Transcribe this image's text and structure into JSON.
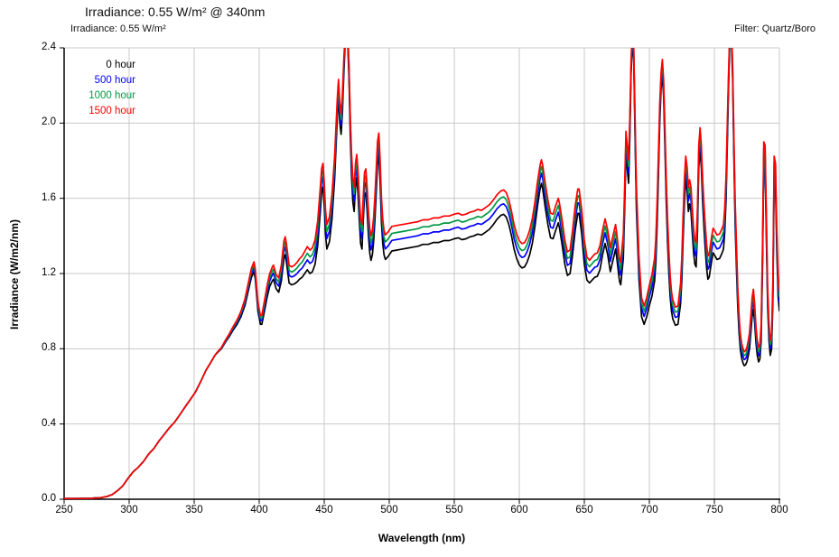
{
  "page": {
    "title": "Irradiance: 0.55 W/m² @ 340nm",
    "subtitle": "Irradiance: 0.55 W/m²",
    "filter_label": "Filter: Quartz/Boro"
  },
  "chart_data": {
    "type": "line",
    "title": "Irradiance: 0.55 W/m² @ 340nm",
    "subtitle": "Irradiance: 0.55 W/m²",
    "annotation_top_right": "Filter: Quartz/Boro",
    "xlabel": "Wavelength (nm)",
    "ylabel": "Irradiance (W/m2/nm)",
    "xlim": [
      250,
      800
    ],
    "ylim": [
      0,
      2.4
    ],
    "x_ticks": [
      250,
      300,
      350,
      400,
      450,
      500,
      550,
      600,
      650,
      700,
      750,
      800
    ],
    "y_ticks": [
      "0.0",
      "0.4",
      "0.8",
      "1.2",
      "1.6",
      "2.0",
      "2.4"
    ],
    "grid": true,
    "legend_position": "upper-left-inside",
    "colors": {
      "grid": "#c8c8c8",
      "axis": "#000000",
      "frame": "#9a9a9a"
    },
    "series": [
      {
        "name": "0 hour",
        "color": "#000000",
        "aging_factor": 0.0
      },
      {
        "name": "500 hour",
        "color": "#0000ff",
        "aging_factor": 0.045
      },
      {
        "name": "1000 hour",
        "color": "#009944",
        "aging_factor": 0.075
      },
      {
        "name": "1500 hour",
        "color": "#ff0000",
        "aging_factor": 0.105
      }
    ],
    "aging_model": {
      "note": "series value = base × (1 + factor × ramp(λ) × damp(v)); ramp rises 0→1 between 365–440 nm; damp = clamp(1.8 − 0.65·v, 0.25, 1); peaks above 2.4 are clipped at chart top",
      "ramp_start": 365,
      "ramp_end": 440,
      "damp_a": 1.8,
      "damp_b": 0.65,
      "damp_min": 0.25,
      "damp_max": 1.0
    },
    "base_series_name": "0 hour",
    "points": [
      [
        250,
        0.004
      ],
      [
        260,
        0.004
      ],
      [
        270,
        0.005
      ],
      [
        278,
        0.008
      ],
      [
        283,
        0.015
      ],
      [
        287,
        0.025
      ],
      [
        291,
        0.045
      ],
      [
        295,
        0.07
      ],
      [
        299,
        0.11
      ],
      [
        303,
        0.145
      ],
      [
        307,
        0.17
      ],
      [
        311,
        0.2
      ],
      [
        315,
        0.24
      ],
      [
        319,
        0.27
      ],
      [
        323,
        0.31
      ],
      [
        327,
        0.345
      ],
      [
        331,
        0.38
      ],
      [
        335,
        0.41
      ],
      [
        339,
        0.45
      ],
      [
        343,
        0.49
      ],
      [
        347,
        0.53
      ],
      [
        351,
        0.57
      ],
      [
        355,
        0.625
      ],
      [
        359,
        0.685
      ],
      [
        363,
        0.73
      ],
      [
        366,
        0.765
      ],
      [
        368,
        0.78
      ],
      [
        371,
        0.8
      ],
      [
        374,
        0.835
      ],
      [
        377,
        0.865
      ],
      [
        380,
        0.9
      ],
      [
        383,
        0.93
      ],
      [
        386,
        0.97
      ],
      [
        389,
        1.03
      ],
      [
        392,
        1.12
      ],
      [
        394,
        1.18
      ],
      [
        396,
        1.21
      ],
      [
        397,
        1.17
      ],
      [
        399,
        1.0
      ],
      [
        401,
        0.93
      ],
      [
        402,
        0.93
      ],
      [
        404,
        1.0
      ],
      [
        406,
        1.07
      ],
      [
        408,
        1.13
      ],
      [
        410,
        1.16
      ],
      [
        411,
        1.17
      ],
      [
        413,
        1.12
      ],
      [
        415,
        1.1
      ],
      [
        417,
        1.16
      ],
      [
        419,
        1.28
      ],
      [
        420,
        1.3
      ],
      [
        421,
        1.26
      ],
      [
        423,
        1.15
      ],
      [
        425,
        1.14
      ],
      [
        427,
        1.145
      ],
      [
        429,
        1.155
      ],
      [
        431,
        1.17
      ],
      [
        433,
        1.18
      ],
      [
        435,
        1.2
      ],
      [
        437,
        1.22
      ],
      [
        439,
        1.2
      ],
      [
        441,
        1.21
      ],
      [
        443,
        1.25
      ],
      [
        445,
        1.35
      ],
      [
        447,
        1.53
      ],
      [
        448,
        1.63
      ],
      [
        449,
        1.66
      ],
      [
        450,
        1.56
      ],
      [
        451,
        1.41
      ],
      [
        452,
        1.33
      ],
      [
        454,
        1.37
      ],
      [
        456,
        1.49
      ],
      [
        458,
        1.7
      ],
      [
        460,
        2.02
      ],
      [
        461,
        2.14
      ],
      [
        462,
        2.0
      ],
      [
        463,
        1.94
      ],
      [
        464,
        2.06
      ],
      [
        465,
        2.25
      ],
      [
        466,
        2.4
      ],
      [
        467,
        2.47
      ],
      [
        468,
        2.44
      ],
      [
        469,
        2.24
      ],
      [
        470,
        1.94
      ],
      [
        471,
        1.72
      ],
      [
        472,
        1.58
      ],
      [
        473,
        1.53
      ],
      [
        474,
        1.66
      ],
      [
        475,
        1.71
      ],
      [
        476,
        1.62
      ],
      [
        477,
        1.48
      ],
      [
        478,
        1.36
      ],
      [
        479,
        1.33
      ],
      [
        480,
        1.48
      ],
      [
        481,
        1.61
      ],
      [
        482,
        1.63
      ],
      [
        483,
        1.53
      ],
      [
        484,
        1.4
      ],
      [
        485,
        1.31
      ],
      [
        486,
        1.27
      ],
      [
        487,
        1.3
      ],
      [
        488,
        1.37
      ],
      [
        489,
        1.49
      ],
      [
        490,
        1.63
      ],
      [
        491,
        1.78
      ],
      [
        492,
        1.83
      ],
      [
        493,
        1.68
      ],
      [
        494,
        1.47
      ],
      [
        495,
        1.36
      ],
      [
        496,
        1.3
      ],
      [
        497,
        1.275
      ],
      [
        499,
        1.29
      ],
      [
        502,
        1.32
      ],
      [
        506,
        1.325
      ],
      [
        510,
        1.33
      ],
      [
        514,
        1.335
      ],
      [
        518,
        1.34
      ],
      [
        522,
        1.345
      ],
      [
        526,
        1.355
      ],
      [
        530,
        1.355
      ],
      [
        534,
        1.365
      ],
      [
        538,
        1.365
      ],
      [
        542,
        1.375
      ],
      [
        546,
        1.375
      ],
      [
        550,
        1.385
      ],
      [
        553,
        1.39
      ],
      [
        556,
        1.38
      ],
      [
        559,
        1.385
      ],
      [
        562,
        1.395
      ],
      [
        565,
        1.4
      ],
      [
        568,
        1.41
      ],
      [
        571,
        1.405
      ],
      [
        574,
        1.42
      ],
      [
        577,
        1.435
      ],
      [
        580,
        1.46
      ],
      [
        583,
        1.49
      ],
      [
        586,
        1.51
      ],
      [
        588,
        1.515
      ],
      [
        590,
        1.5
      ],
      [
        592,
        1.46
      ],
      [
        594,
        1.4
      ],
      [
        596,
        1.33
      ],
      [
        598,
        1.28
      ],
      [
        600,
        1.245
      ],
      [
        602,
        1.23
      ],
      [
        604,
        1.235
      ],
      [
        606,
        1.26
      ],
      [
        608,
        1.3
      ],
      [
        610,
        1.36
      ],
      [
        612,
        1.45
      ],
      [
        614,
        1.56
      ],
      [
        616,
        1.65
      ],
      [
        617,
        1.68
      ],
      [
        618,
        1.65
      ],
      [
        620,
        1.55
      ],
      [
        622,
        1.46
      ],
      [
        624,
        1.39
      ],
      [
        626,
        1.385
      ],
      [
        628,
        1.43
      ],
      [
        630,
        1.47
      ],
      [
        631,
        1.44
      ],
      [
        633,
        1.35
      ],
      [
        635,
        1.25
      ],
      [
        637,
        1.19
      ],
      [
        639,
        1.2
      ],
      [
        641,
        1.3
      ],
      [
        643,
        1.43
      ],
      [
        645,
        1.52
      ],
      [
        646,
        1.52
      ],
      [
        648,
        1.41
      ],
      [
        650,
        1.25
      ],
      [
        652,
        1.165
      ],
      [
        654,
        1.15
      ],
      [
        656,
        1.165
      ],
      [
        658,
        1.18
      ],
      [
        660,
        1.185
      ],
      [
        662,
        1.22
      ],
      [
        664,
        1.3
      ],
      [
        666,
        1.36
      ],
      [
        668,
        1.3
      ],
      [
        670,
        1.21
      ],
      [
        672,
        1.27
      ],
      [
        674,
        1.33
      ],
      [
        675,
        1.28
      ],
      [
        677,
        1.16
      ],
      [
        678,
        1.14
      ],
      [
        680,
        1.28
      ],
      [
        681,
        1.52
      ],
      [
        682,
        1.84
      ],
      [
        683,
        1.76
      ],
      [
        684,
        1.68
      ],
      [
        685,
        1.92
      ],
      [
        686,
        2.26
      ],
      [
        687,
        2.44
      ],
      [
        688,
        2.34
      ],
      [
        689,
        1.92
      ],
      [
        690,
        1.55
      ],
      [
        692,
        1.17
      ],
      [
        694,
        0.97
      ],
      [
        696,
        0.93
      ],
      [
        698,
        0.97
      ],
      [
        700,
        1.03
      ],
      [
        702,
        1.08
      ],
      [
        704,
        1.16
      ],
      [
        705,
        1.26
      ],
      [
        706,
        1.45
      ],
      [
        707,
        1.72
      ],
      [
        708,
        2.0
      ],
      [
        709,
        2.18
      ],
      [
        710,
        2.26
      ],
      [
        711,
        2.14
      ],
      [
        712,
        1.86
      ],
      [
        713,
        1.58
      ],
      [
        714,
        1.36
      ],
      [
        715,
        1.2
      ],
      [
        716,
        1.08
      ],
      [
        717,
        1.0
      ],
      [
        718,
        0.96
      ],
      [
        720,
        0.925
      ],
      [
        722,
        0.93
      ],
      [
        724,
        1.04
      ],
      [
        725,
        1.17
      ],
      [
        726,
        1.38
      ],
      [
        727,
        1.58
      ],
      [
        728,
        1.7
      ],
      [
        729,
        1.64
      ],
      [
        730,
        1.53
      ],
      [
        731,
        1.57
      ],
      [
        732,
        1.53
      ],
      [
        733,
        1.42
      ],
      [
        734,
        1.31
      ],
      [
        735,
        1.25
      ],
      [
        736,
        1.235
      ],
      [
        737,
        1.42
      ],
      [
        738,
        1.76
      ],
      [
        739,
        1.86
      ],
      [
        740,
        1.76
      ],
      [
        741,
        1.58
      ],
      [
        742,
        1.44
      ],
      [
        743,
        1.33
      ],
      [
        744,
        1.23
      ],
      [
        745,
        1.17
      ],
      [
        746,
        1.18
      ],
      [
        748,
        1.27
      ],
      [
        749,
        1.31
      ],
      [
        750,
        1.3
      ],
      [
        752,
        1.275
      ],
      [
        754,
        1.28
      ],
      [
        756,
        1.31
      ],
      [
        757,
        1.33
      ],
      [
        758,
        1.42
      ],
      [
        759,
        1.6
      ],
      [
        760,
        1.9
      ],
      [
        761,
        2.2
      ],
      [
        762,
        2.46
      ],
      [
        763,
        2.47
      ],
      [
        764,
        2.24
      ],
      [
        765,
        1.82
      ],
      [
        766,
        1.46
      ],
      [
        767,
        1.22
      ],
      [
        768,
        1.02
      ],
      [
        769,
        0.88
      ],
      [
        770,
        0.795
      ],
      [
        771,
        0.75
      ],
      [
        772,
        0.725
      ],
      [
        773,
        0.71
      ],
      [
        774,
        0.715
      ],
      [
        775,
        0.73
      ],
      [
        776,
        0.76
      ],
      [
        777,
        0.8
      ],
      [
        778,
        0.88
      ],
      [
        779,
        0.97
      ],
      [
        780,
        1.01
      ],
      [
        781,
        0.94
      ],
      [
        782,
        0.83
      ],
      [
        783,
        0.765
      ],
      [
        784,
        0.73
      ],
      [
        785,
        0.745
      ],
      [
        786,
        0.84
      ],
      [
        787,
        1.22
      ],
      [
        788,
        1.78
      ],
      [
        789,
        1.76
      ],
      [
        790,
        1.38
      ],
      [
        791,
        1.02
      ],
      [
        792,
        0.84
      ],
      [
        793,
        0.765
      ],
      [
        794,
        0.8
      ],
      [
        795,
        1.05
      ],
      [
        796,
        1.7
      ],
      [
        797,
        1.66
      ],
      [
        798,
        1.32
      ],
      [
        799,
        1.08
      ],
      [
        800,
        1.0
      ]
    ]
  }
}
